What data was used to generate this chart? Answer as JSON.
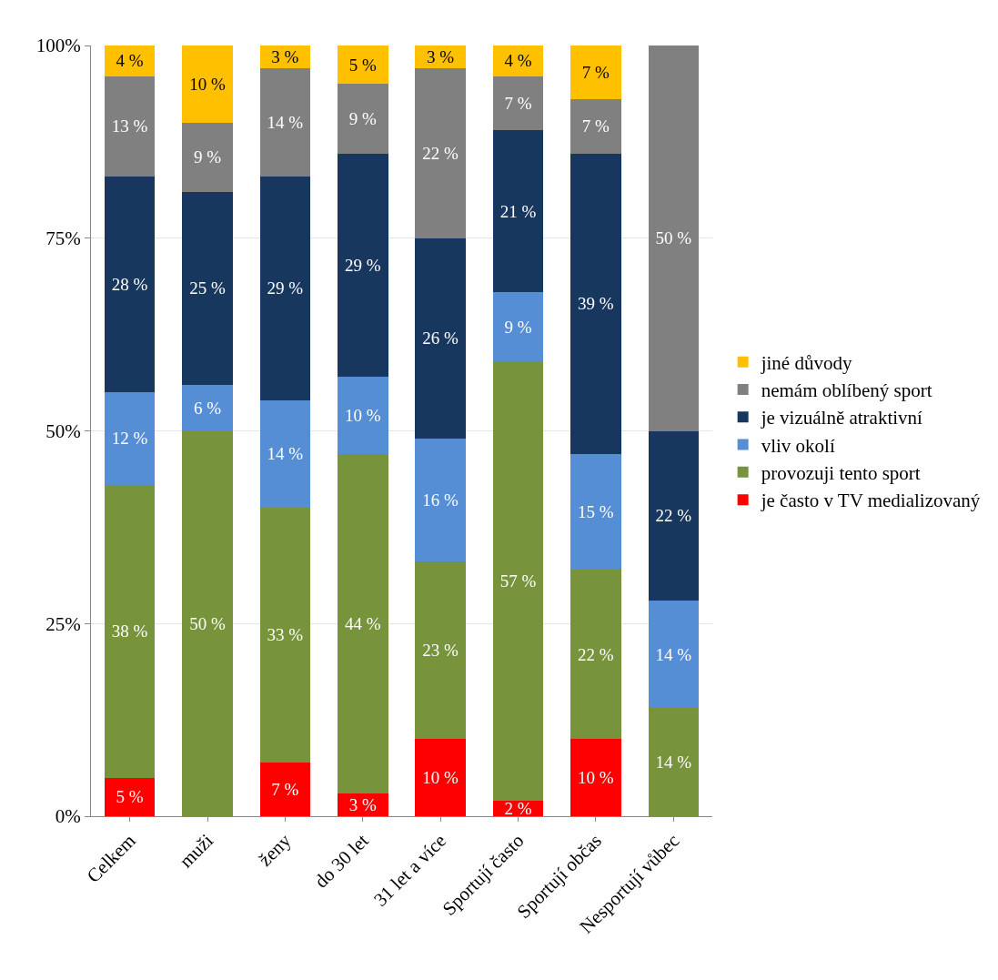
{
  "chart_data": {
    "type": "bar",
    "stacked": true,
    "categories": [
      "Celkem",
      "muži",
      "ženy",
      "do 30 let",
      "31 let a více",
      "Sportují často",
      "Sportují občas",
      "Nesportují vůbec"
    ],
    "series": [
      {
        "name": "je často v TV medializovaný",
        "color": "#ff0000",
        "values": [
          5,
          0,
          7,
          3,
          10,
          2,
          10,
          0
        ],
        "value_labels": [
          "5 %",
          null,
          "7 %",
          "3 %",
          "10 %",
          "2 %",
          "10 %",
          null
        ]
      },
      {
        "name": "provozuji tento sport",
        "color": "#77933c",
        "values": [
          38,
          50,
          33,
          44,
          23,
          57,
          22,
          14
        ],
        "value_labels": [
          "38 %",
          "50 %",
          "33 %",
          "44 %",
          "23 %",
          "57 %",
          "22 %",
          "14 %"
        ]
      },
      {
        "name": "vliv okolí",
        "color": "#558ed5",
        "values": [
          12,
          6,
          14,
          10,
          16,
          9,
          15,
          14
        ],
        "value_labels": [
          "12 %",
          "6 %",
          "14 %",
          "10 %",
          "16 %",
          "9 %",
          "15 %",
          "14 %"
        ]
      },
      {
        "name": "je vizuálně atraktivní",
        "color": "#17375e",
        "values": [
          28,
          25,
          29,
          29,
          26,
          21,
          39,
          22
        ],
        "value_labels": [
          "28 %",
          "25 %",
          "29 %",
          "29 %",
          "26 %",
          "21 %",
          "39 %",
          "22 %"
        ]
      },
      {
        "name": "nemám oblíbený sport",
        "color": "#808080",
        "values": [
          13,
          9,
          14,
          9,
          22,
          7,
          7,
          50
        ],
        "value_labels": [
          "13 %",
          "9 %",
          "14 %",
          "9 %",
          "22 %",
          "7 %",
          "7 %",
          "50 %"
        ]
      },
      {
        "name": "jiné důvody",
        "color": "#ffc000",
        "values": [
          4,
          10,
          3,
          5,
          3,
          4,
          7,
          0
        ],
        "value_labels": [
          "4 %",
          "10 %",
          "3 %",
          "5 %",
          "3 %",
          "4 %",
          "7 %",
          null
        ]
      }
    ],
    "ylim": [
      0,
      100
    ],
    "yticks": [
      {
        "value": 0,
        "label": "0%"
      },
      {
        "value": 25,
        "label": "25%"
      },
      {
        "value": 50,
        "label": "50%"
      },
      {
        "value": 75,
        "label": "75%"
      },
      {
        "value": 100,
        "label": "100%"
      }
    ],
    "grid": "y",
    "legend": "right"
  }
}
